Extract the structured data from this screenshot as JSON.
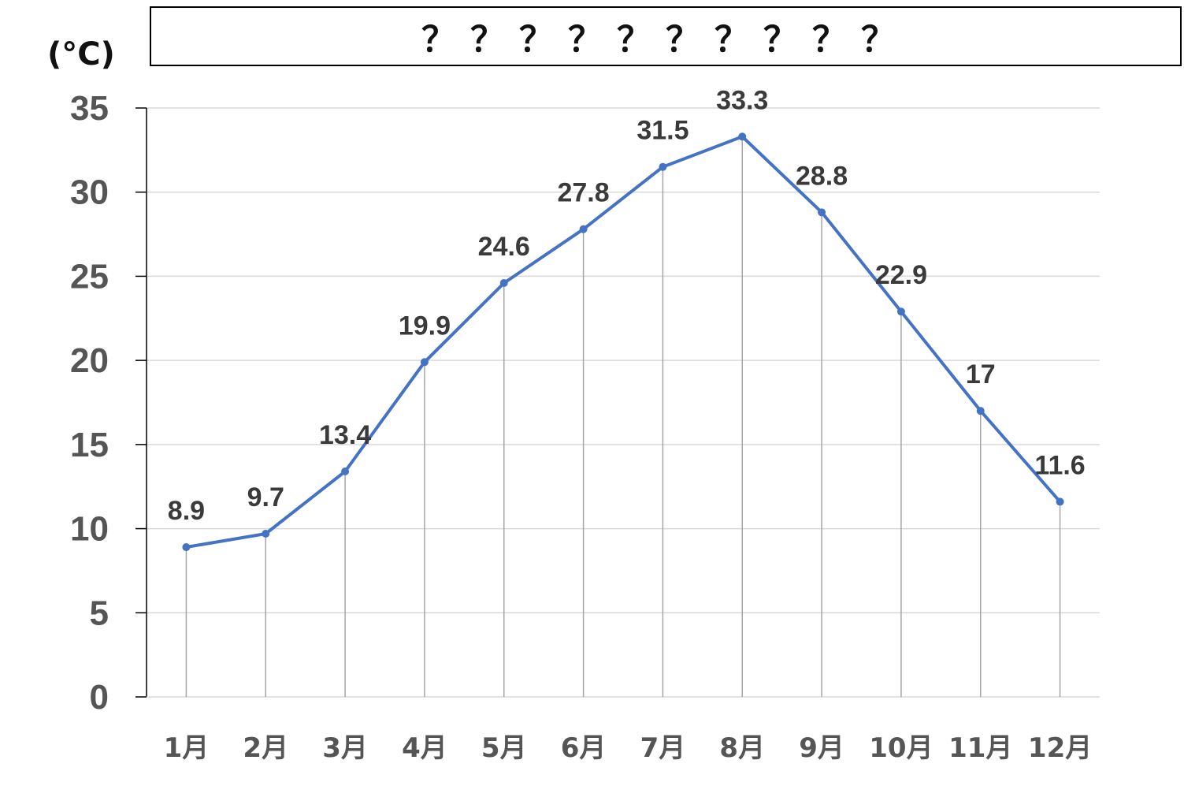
{
  "chart_data": {
    "type": "line",
    "title": "？？？？？？？？？？",
    "ylabel": "(°C)",
    "categories": [
      "1月",
      "2月",
      "3月",
      "4月",
      "5月",
      "6月",
      "7月",
      "8月",
      "9月",
      "10月",
      "11月",
      "12月"
    ],
    "series": [
      {
        "values": [
          8.9,
          9.7,
          13.4,
          19.9,
          24.6,
          27.8,
          31.5,
          33.3,
          28.8,
          22.9,
          17,
          11.6
        ],
        "color": "#4472c4"
      }
    ],
    "data_labels": [
      "8.9",
      "9.7",
      "13.4",
      "19.9",
      "24.6",
      "27.8",
      "31.5",
      "33.3",
      "28.8",
      "22.9",
      "17",
      "11.6"
    ],
    "ylim": [
      0,
      35
    ],
    "yticks": [
      0,
      5,
      10,
      15,
      20,
      25,
      30,
      35
    ],
    "grid": true,
    "drop_lines": true,
    "colors": {
      "line": "#4472c4",
      "grid": "#d9d9d9",
      "drop_line": "#a6a6a6",
      "axis": "#000000"
    }
  }
}
